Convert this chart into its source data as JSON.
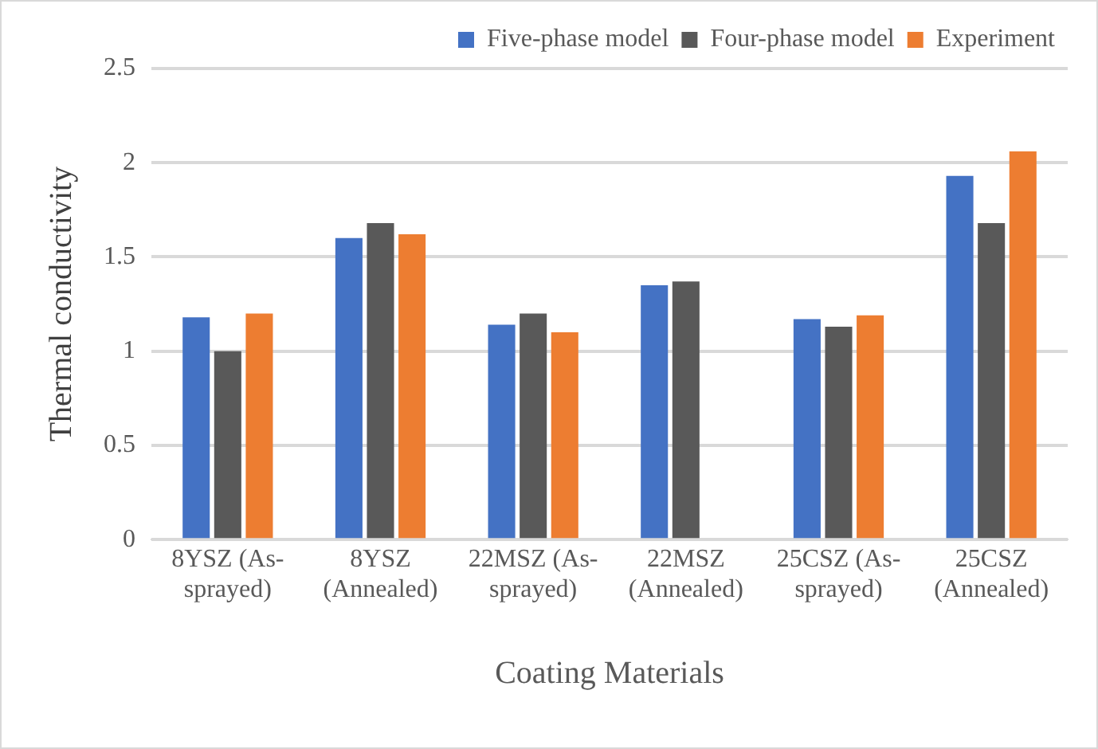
{
  "chart_data": {
    "type": "bar",
    "xlabel": "Coating Materials",
    "ylabel": "Thermal conductivity",
    "categories": [
      "8YSZ (As-sprayed)",
      "8YSZ (Annealed)",
      "22MSZ (As-sprayed)",
      "22MSZ (Annealed)",
      "25CSZ (As-sprayed)",
      "25CSZ (Annealed)"
    ],
    "series": [
      {
        "name": "Five-phase model",
        "color": "#4472c4",
        "values": [
          1.18,
          1.6,
          1.14,
          1.35,
          1.17,
          1.93
        ]
      },
      {
        "name": "Four-phase model",
        "color": "#595959",
        "values": [
          1.0,
          1.68,
          1.2,
          1.37,
          1.13,
          1.68
        ]
      },
      {
        "name": "Experiment",
        "color": "#ed7d31",
        "values": [
          1.2,
          1.62,
          1.1,
          null,
          1.19,
          2.06
        ]
      }
    ],
    "ylim": [
      0,
      2.5
    ],
    "yticks": [
      0,
      0.5,
      1,
      1.5,
      2,
      2.5
    ],
    "grid": "y",
    "legend": "top right"
  }
}
